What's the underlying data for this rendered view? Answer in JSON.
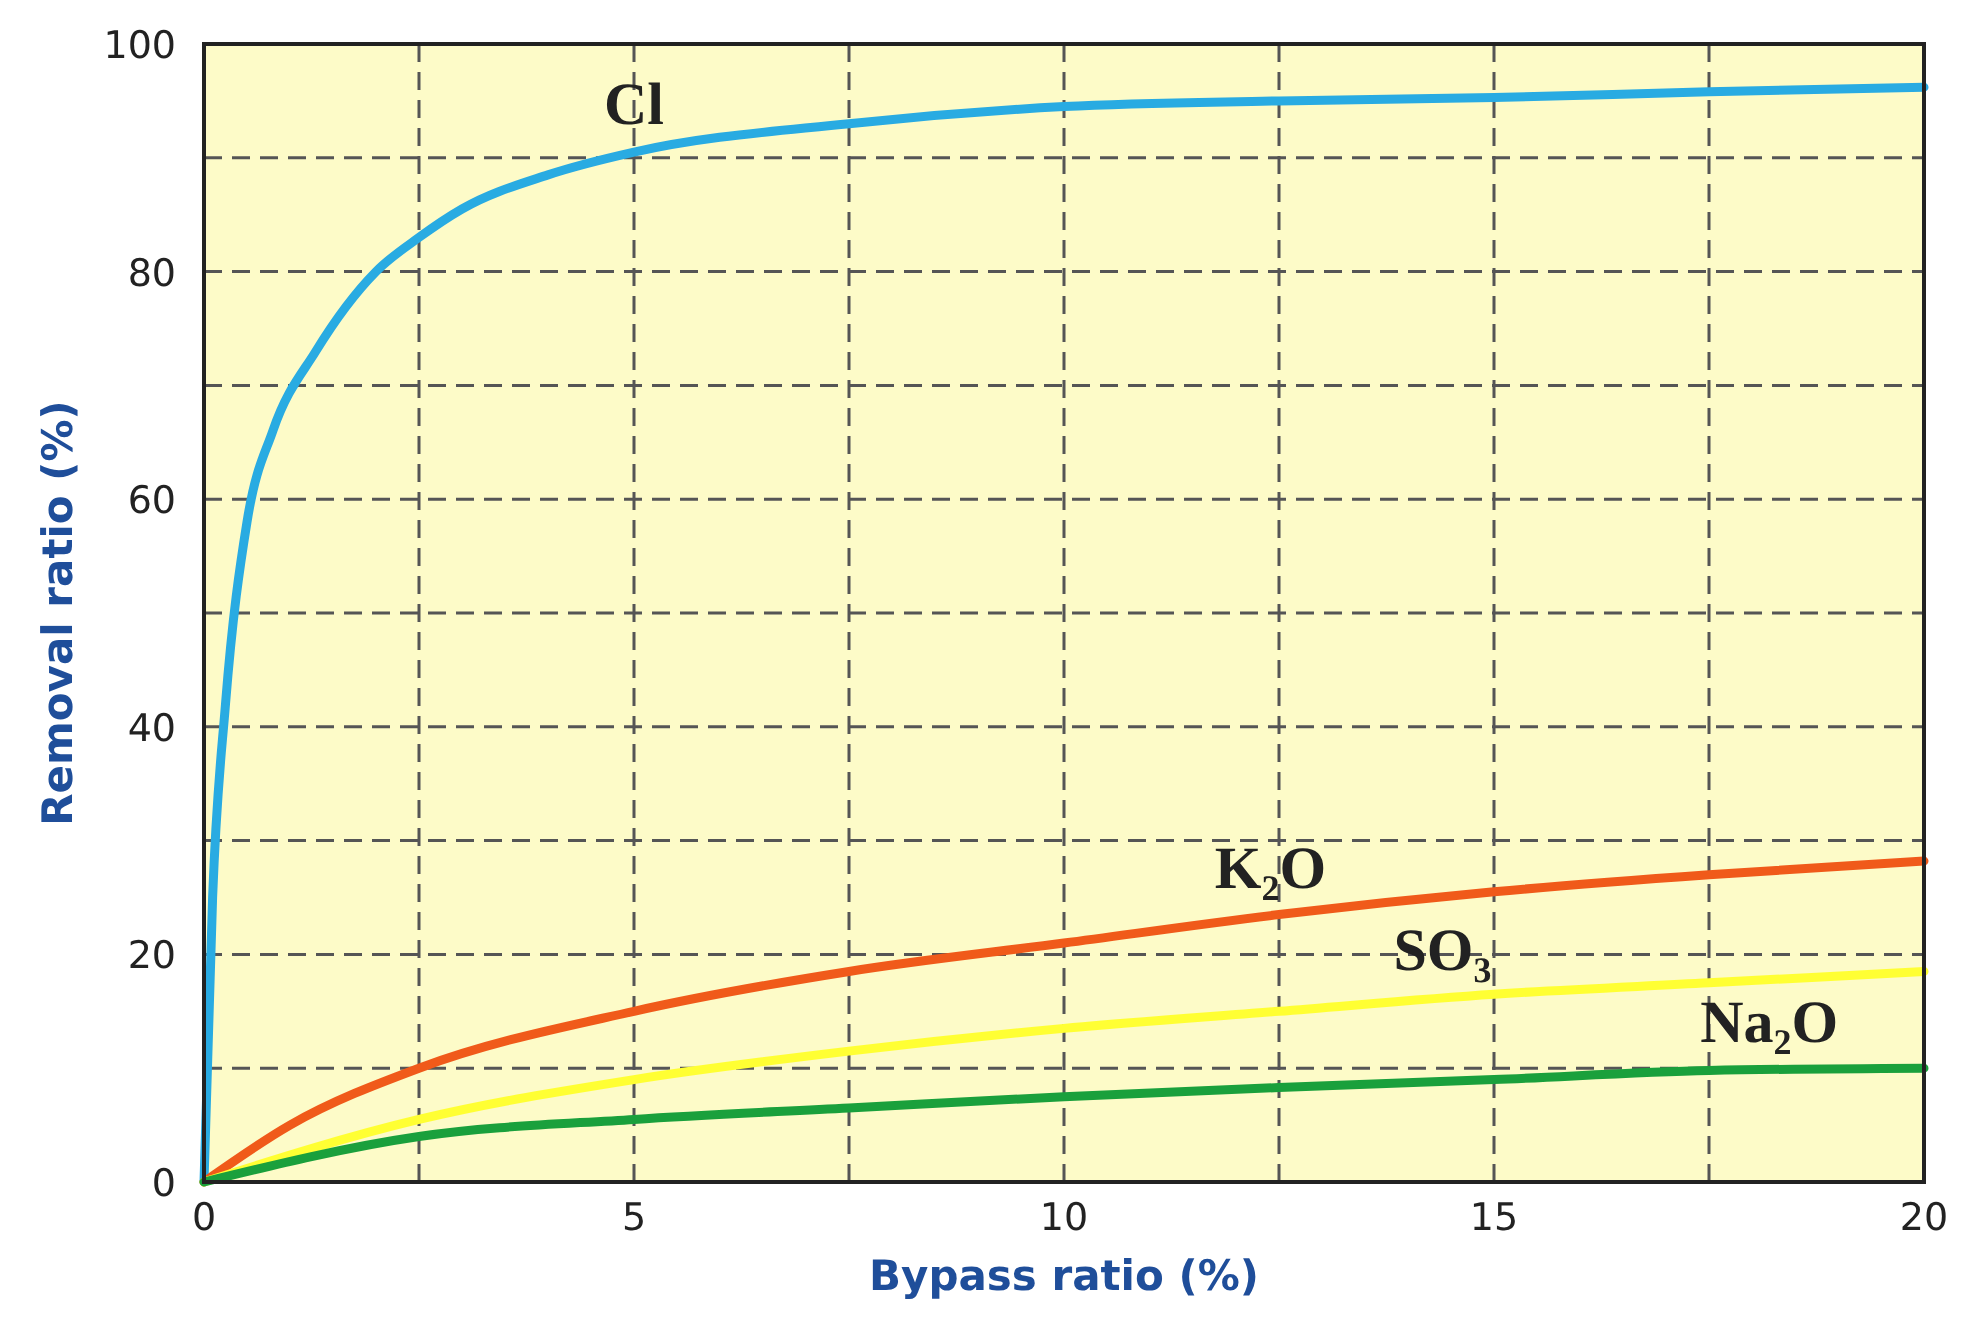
{
  "chart_data": {
    "type": "line",
    "xlabel": "Bypass ratio (%)",
    "ylabel": "Removal ratio (%)",
    "xlim": [
      0,
      20
    ],
    "ylim": [
      0,
      100
    ],
    "xticks": [
      0,
      {
        "value": 2.5,
        "label": null
      },
      5,
      {
        "value": 7.5,
        "label": null
      },
      10,
      {
        "value": 12.5,
        "label": null
      },
      15,
      {
        "value": 17.5,
        "label": null
      },
      20
    ],
    "yticks": [
      0,
      {
        "value": 10,
        "label": null
      },
      20,
      {
        "value": 30,
        "label": null
      },
      40,
      {
        "value": 50,
        "label": null
      },
      60,
      {
        "value": 70,
        "label": null
      },
      80,
      {
        "value": 90,
        "label": null
      },
      100
    ],
    "grid": true,
    "marker": "none",
    "line_style": "solid",
    "series": [
      {
        "name": "Cl",
        "color": "#29abe2",
        "x": [
          0,
          0.1,
          0.25,
          0.5,
          0.8,
          1.3,
          2,
          2.5,
          3,
          4,
          5,
          7.5,
          10,
          12.5,
          15,
          17.5,
          20
        ],
        "values": [
          0,
          25,
          42,
          58,
          66,
          73,
          80,
          83,
          85.5,
          88.5,
          90.5,
          93,
          94.5,
          95,
          95.3,
          95.8,
          96.2
        ]
      },
      {
        "name": "K₂O",
        "color": "#f05a1a",
        "x": [
          0,
          1,
          2.5,
          5,
          7.5,
          10,
          12.5,
          15,
          17.5,
          20
        ],
        "values": [
          0,
          5,
          10,
          15,
          18.5,
          21,
          23.5,
          25.5,
          27,
          28.2
        ]
      },
      {
        "name": "SO₃",
        "color": "#ffff33",
        "x": [
          0,
          2.5,
          5,
          7.5,
          10,
          12.5,
          15,
          17.5,
          20
        ],
        "values": [
          0,
          5.5,
          9,
          11.5,
          13.5,
          15,
          16.5,
          17.5,
          18.5
        ]
      },
      {
        "name": "Na₂O",
        "color": "#1aa03c",
        "x": [
          0,
          2.5,
          5,
          7.5,
          10,
          12.5,
          15,
          17.5,
          20
        ],
        "values": [
          0,
          4,
          5.5,
          6.5,
          7.5,
          8.3,
          9,
          9.8,
          10
        ]
      }
    ]
  }
}
